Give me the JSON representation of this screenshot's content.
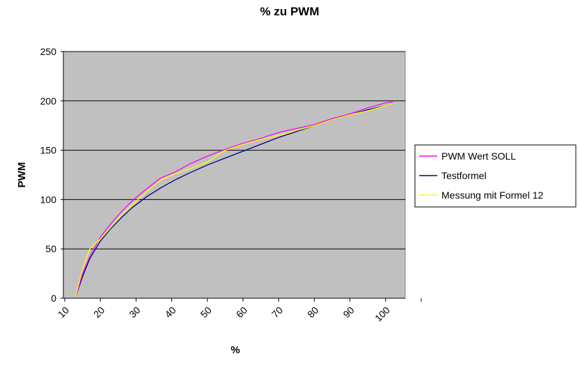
{
  "chart_data": {
    "type": "line",
    "title": "% zu PWM",
    "xlabel": "%",
    "ylabel": "PWM",
    "x_ticks": [
      "10",
      "20",
      "30",
      "40",
      "50",
      "60",
      "70",
      "80",
      "90",
      "100"
    ],
    "y_ticks": [
      "0",
      "50",
      "100",
      "150",
      "200",
      "250"
    ],
    "xlim": [
      10,
      105
    ],
    "ylim": [
      0,
      250
    ],
    "grid": "horizontal",
    "legend_position": "right",
    "x": [
      13,
      15,
      17,
      20,
      23,
      26,
      29,
      33,
      37,
      41,
      45,
      50,
      55,
      60,
      65,
      70,
      75,
      80,
      85,
      90,
      95,
      100,
      102
    ],
    "series": [
      {
        "name": "PWM Wert SOLL",
        "color": "#ff00ff",
        "values": [
          1,
          25,
          42,
          62,
          76,
          88,
          99,
          111,
          122,
          128,
          136,
          144,
          151,
          157,
          162,
          168,
          172,
          176,
          182,
          187,
          193,
          198,
          199
        ]
      },
      {
        "name": "Testformel",
        "color": "#000080",
        "values": [
          1,
          22,
          40,
          58,
          71,
          82,
          92,
          103,
          112,
          120,
          127,
          135,
          142,
          149,
          156,
          163,
          169,
          175,
          181,
          186,
          191,
          195,
          197
        ]
      },
      {
        "name": "Messung mit Formel 12",
        "color": "#ffff00",
        "values": [
          1,
          30,
          50,
          60,
          72,
          85,
          95,
          108,
          120,
          126,
          131,
          138,
          150,
          156,
          161,
          165,
          170,
          175,
          181,
          186,
          190,
          195,
          197
        ]
      }
    ]
  }
}
